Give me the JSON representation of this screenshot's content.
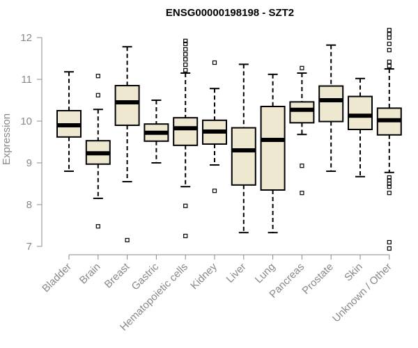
{
  "chart_data": {
    "type": "box",
    "title": "ENSG00000198198 - SZT2",
    "xlabel": "",
    "ylabel": "Expression",
    "ylim": [
      6.95,
      12.2
    ],
    "yticks": [
      7,
      8,
      9,
      10,
      11,
      12
    ],
    "box_color": "#EFE8D1",
    "categories": [
      "Bladder",
      "Brain",
      "Breast",
      "Gastric",
      "Hematopoietic cells",
      "Kidney",
      "Liver",
      "Lung",
      "Pancreas",
      "Prostate",
      "Skin",
      "Unknown / Other"
    ],
    "boxes": [
      {
        "whisker_low": 8.8,
        "q1": 9.62,
        "median": 9.9,
        "q3": 10.25,
        "whisker_high": 11.18,
        "outliers": []
      },
      {
        "whisker_low": 8.15,
        "q1": 8.97,
        "median": 9.23,
        "q3": 9.53,
        "whisker_high": 10.28,
        "outliers": [
          7.48,
          10.62,
          11.08
        ]
      },
      {
        "whisker_low": 8.55,
        "q1": 9.9,
        "median": 10.45,
        "q3": 10.85,
        "whisker_high": 11.78,
        "outliers": [
          7.15
        ]
      },
      {
        "whisker_low": 9.0,
        "q1": 9.52,
        "median": 9.72,
        "q3": 9.93,
        "whisker_high": 10.5,
        "outliers": []
      },
      {
        "whisker_low": 8.43,
        "q1": 9.42,
        "median": 9.83,
        "q3": 10.08,
        "whisker_high": 11.15,
        "outliers": [
          7.25,
          7.97,
          11.22,
          11.35,
          11.48,
          11.6,
          11.72,
          11.85,
          11.92
        ]
      },
      {
        "whisker_low": 8.95,
        "q1": 9.45,
        "median": 9.75,
        "q3": 10.02,
        "whisker_high": 10.78,
        "outliers": [
          8.33,
          11.4
        ]
      },
      {
        "whisker_low": 7.33,
        "q1": 8.47,
        "median": 9.3,
        "q3": 9.84,
        "whisker_high": 11.36,
        "outliers": []
      },
      {
        "whisker_low": 7.33,
        "q1": 8.35,
        "median": 9.55,
        "q3": 10.35,
        "whisker_high": 11.12,
        "outliers": []
      },
      {
        "whisker_low": 9.68,
        "q1": 9.96,
        "median": 10.27,
        "q3": 10.46,
        "whisker_high": 11.15,
        "outliers": [
          8.28,
          8.93,
          11.27
        ]
      },
      {
        "whisker_low": 8.8,
        "q1": 9.99,
        "median": 10.5,
        "q3": 10.84,
        "whisker_high": 11.82,
        "outliers": []
      },
      {
        "whisker_low": 8.67,
        "q1": 9.8,
        "median": 10.13,
        "q3": 10.59,
        "whisker_high": 11.02,
        "outliers": []
      },
      {
        "whisker_low": 8.77,
        "q1": 9.67,
        "median": 10.02,
        "q3": 10.31,
        "whisker_high": 11.25,
        "outliers": [
          6.95,
          7.1,
          8.28,
          8.43,
          8.5,
          8.58,
          8.65,
          11.32,
          11.42,
          11.7,
          11.85,
          12.0,
          12.08,
          12.18
        ]
      }
    ]
  }
}
